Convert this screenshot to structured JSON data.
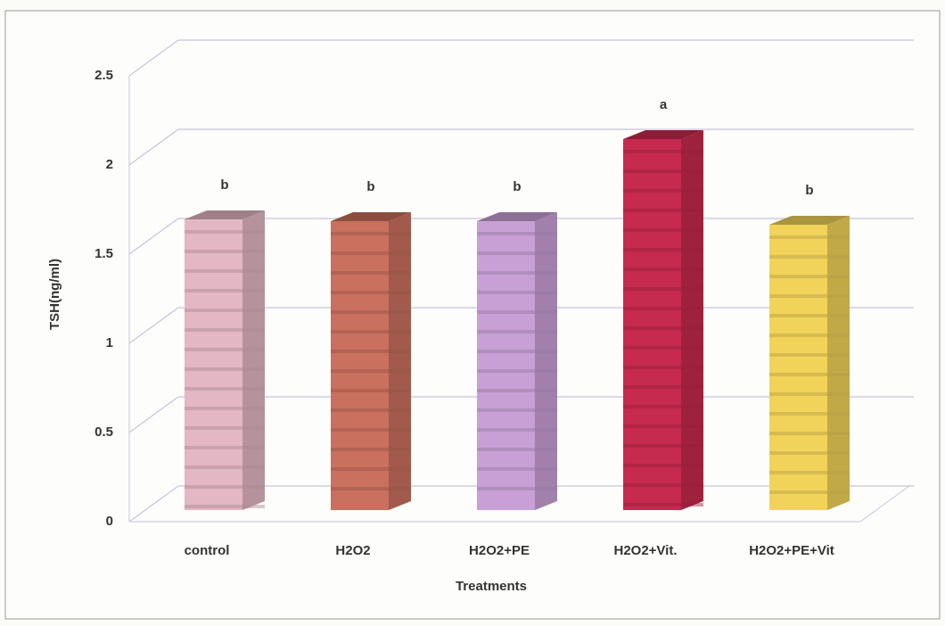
{
  "chart_data": {
    "type": "bar3d",
    "x_label": "Treatments",
    "y_label": "TSH(ng/ml)",
    "categories": [
      "control",
      "H2O2",
      "H2O2+PE",
      "H2O2+Vit.",
      "H2O2+PE+Vit"
    ],
    "values": [
      1.63,
      1.62,
      1.62,
      2.08,
      1.6
    ],
    "annotations": [
      "b",
      "b",
      "b",
      "a",
      "b"
    ],
    "colors": [
      "#e3b7c3",
      "#c9705e",
      "#c9a0d6",
      "#c62a4e",
      "#f2d35a"
    ],
    "ylim": [
      0,
      2.5
    ],
    "yticks": [
      0,
      0.5,
      1,
      1.5,
      2,
      2.5
    ],
    "grid": true
  }
}
